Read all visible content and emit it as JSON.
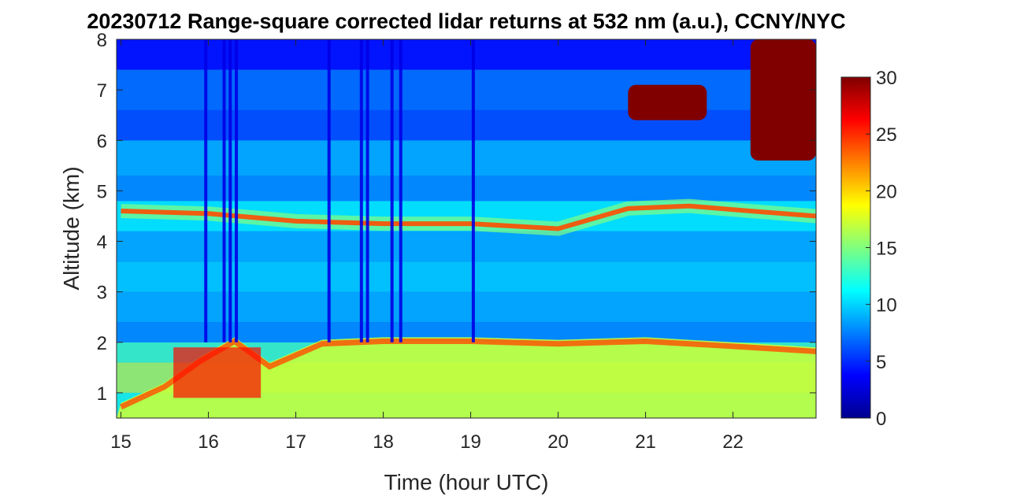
{
  "chart_data": {
    "type": "heatmap",
    "title": "20230712  Range-square corrected lidar returns at 532 nm (a.u.), CCNY/NYC",
    "xlabel": "Time (hour UTC)",
    "ylabel": "Altitude (km)",
    "xlim": [
      14.95,
      22.95
    ],
    "ylim": [
      0.5,
      8
    ],
    "xticks": [
      15,
      16,
      17,
      18,
      19,
      20,
      21,
      22
    ],
    "yticks": [
      1,
      2,
      3,
      4,
      5,
      6,
      7,
      8
    ],
    "colorbar": {
      "range": [
        0,
        30
      ],
      "ticks": [
        0,
        5,
        10,
        15,
        20,
        25,
        30
      ],
      "colormap": "jet"
    },
    "features": {
      "boundary_layer_top_km": [
        {
          "t": 15.0,
          "z": 0.8
        },
        {
          "t": 15.5,
          "z": 1.2
        },
        {
          "t": 15.9,
          "z": 1.7
        },
        {
          "t": 16.3,
          "z": 2.1
        },
        {
          "t": 16.7,
          "z": 1.6
        },
        {
          "t": 17.3,
          "z": 2.05
        },
        {
          "t": 18.0,
          "z": 2.1
        },
        {
          "t": 19.0,
          "z": 2.1
        },
        {
          "t": 20.0,
          "z": 2.05
        },
        {
          "t": 21.0,
          "z": 2.1
        },
        {
          "t": 22.0,
          "z": 2.0
        },
        {
          "t": 22.95,
          "z": 1.9
        }
      ],
      "aerosol_layer_km": [
        {
          "t": 15.0,
          "z": 4.6
        },
        {
          "t": 16.0,
          "z": 4.55
        },
        {
          "t": 17.0,
          "z": 4.4
        },
        {
          "t": 18.0,
          "z": 4.35
        },
        {
          "t": 19.0,
          "z": 4.35
        },
        {
          "t": 20.0,
          "z": 4.25
        },
        {
          "t": 20.8,
          "z": 4.65
        },
        {
          "t": 21.5,
          "z": 4.7
        },
        {
          "t": 22.2,
          "z": 4.6
        },
        {
          "t": 22.95,
          "z": 4.5
        }
      ],
      "cirrus_clouds": [
        {
          "t_start": 20.8,
          "t_end": 21.7,
          "z_bottom": 6.4,
          "z_top": 7.1
        },
        {
          "t_start": 22.2,
          "t_end": 22.95,
          "z_bottom": 5.6,
          "z_top": 8.0
        }
      ],
      "signal_dropouts_hour": [
        15.97,
        16.18,
        16.25,
        16.32,
        17.38,
        17.75,
        17.82,
        18.1,
        18.2,
        19.03
      ]
    }
  }
}
